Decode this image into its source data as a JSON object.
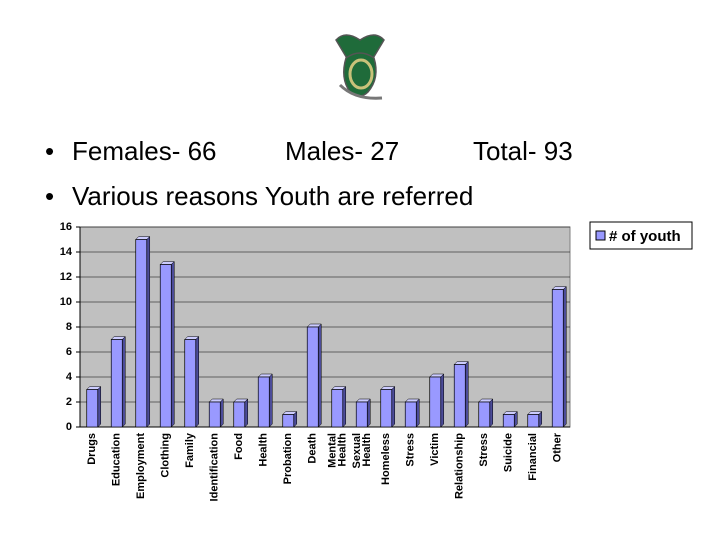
{
  "bullets": [
    "Females- 66",
    "Males- 27",
    "Total- 93",
    "Various reasons Youth are referred"
  ],
  "chart_data": {
    "type": "bar",
    "categories": [
      "Drugs",
      "Education",
      "Employment",
      "Clothing",
      "Family",
      "Identification",
      "Food",
      "Health",
      "Probation",
      "Death",
      "Mental Health",
      "Sexual Health",
      "Homeless",
      "Stress",
      "Victim",
      "Relationship",
      "Stress",
      "Suicide",
      "Financial",
      "Other"
    ],
    "series": [
      {
        "name": "# of youth",
        "color": "#9999ff",
        "values": [
          3,
          7,
          15,
          13,
          7,
          2,
          2,
          4,
          1,
          8,
          3,
          2,
          3,
          2,
          4,
          5,
          2,
          1,
          1,
          11
        ]
      }
    ],
    "ylim": [
      0,
      16
    ],
    "yticks": [
      0,
      2,
      4,
      6,
      8,
      10,
      12,
      14,
      16
    ],
    "grid": true,
    "legend": "right"
  }
}
